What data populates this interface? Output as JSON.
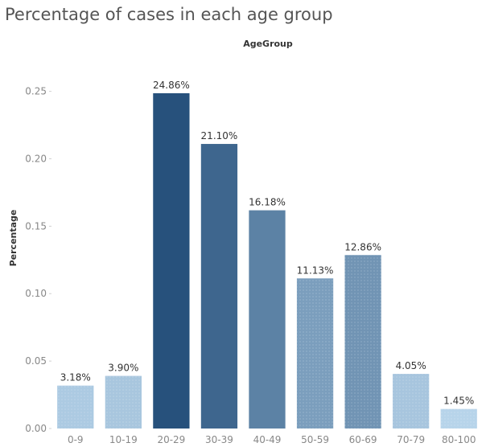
{
  "chart_data": {
    "type": "bar",
    "title": "Percentage of cases in each age group",
    "xlabel": "AgeGroup",
    "ylabel": "Percentage",
    "categories": [
      "0-9",
      "10-19",
      "20-29",
      "30-39",
      "40-49",
      "50-59",
      "60-69",
      "70-79",
      "80-100"
    ],
    "values": [
      0.0318,
      0.039,
      0.2486,
      0.211,
      0.1618,
      0.1113,
      0.1286,
      0.0405,
      0.0145
    ],
    "data_labels": [
      "3.18%",
      "3.90%",
      "24.86%",
      "21.10%",
      "16.18%",
      "11.13%",
      "12.86%",
      "4.05%",
      "1.45%"
    ],
    "yticks": [
      "0.00",
      "0.05",
      "0.10",
      "0.15",
      "0.20",
      "0.25"
    ],
    "ytick_values": [
      0,
      0.05,
      0.1,
      0.15,
      0.2,
      0.25
    ],
    "ylim": [
      0,
      0.2605
    ],
    "grid": false,
    "legend": "none",
    "color_scale": [
      "#b7d4ea",
      "#27517c"
    ]
  }
}
